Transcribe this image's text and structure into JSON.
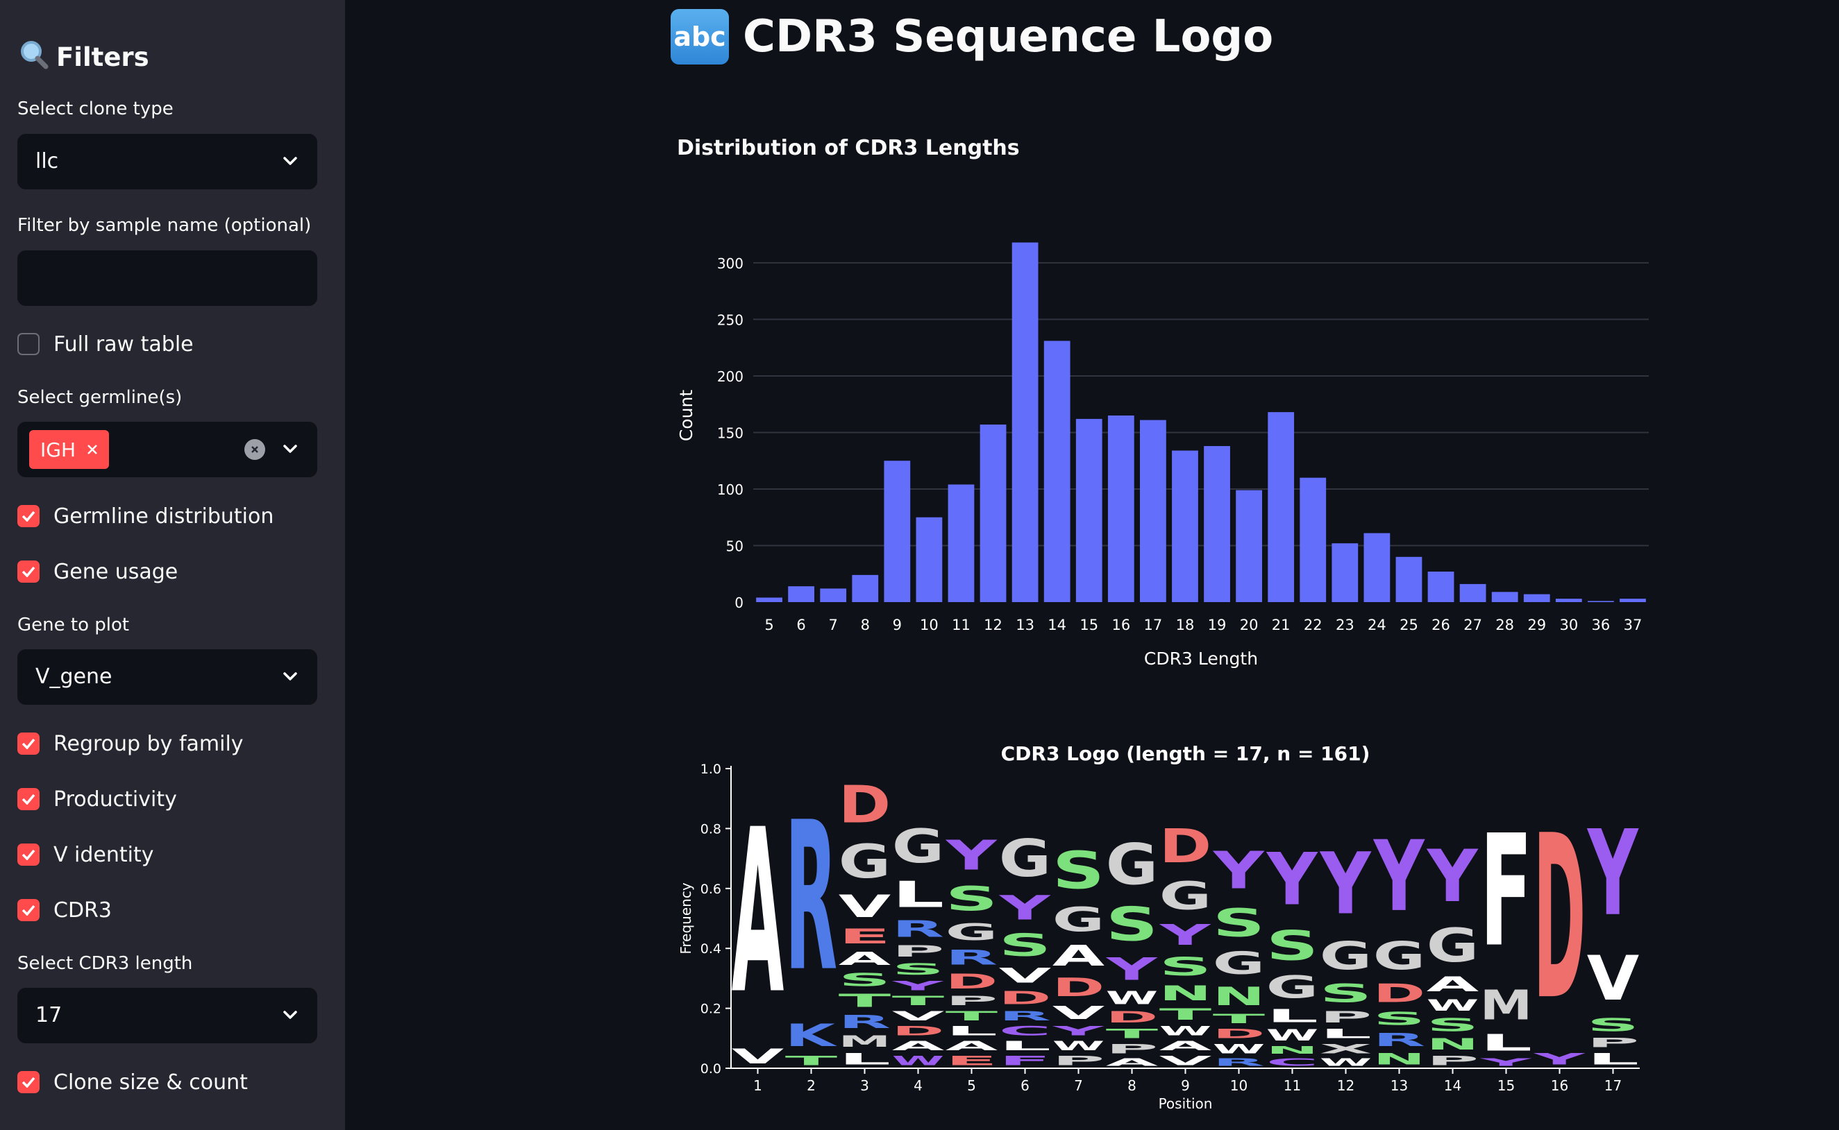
{
  "sidebar": {
    "title": "Filters",
    "title_icon": "magnifier-icon",
    "clone_type": {
      "label": "Select clone type",
      "value": "llc"
    },
    "sample_filter": {
      "label": "Filter by sample name (optional)",
      "value": "",
      "placeholder": ""
    },
    "full_raw_table": {
      "label": "Full raw table",
      "checked": false
    },
    "germline": {
      "label": "Select germline(s)",
      "selected": [
        "IGH"
      ]
    },
    "germline_distribution": {
      "label": "Germline distribution",
      "checked": true
    },
    "gene_usage": {
      "label": "Gene usage",
      "checked": true
    },
    "gene_to_plot": {
      "label": "Gene to plot",
      "value": "V_gene"
    },
    "regroup_by_family": {
      "label": "Regroup by family",
      "checked": true
    },
    "productivity": {
      "label": "Productivity",
      "checked": true
    },
    "v_identity": {
      "label": "V identity",
      "checked": true
    },
    "cdr3": {
      "label": "CDR3",
      "checked": true
    },
    "cdr3_length": {
      "label": "Select CDR3 length",
      "value": "17"
    },
    "clone_size_count": {
      "label": "Clone size & count",
      "checked": true
    }
  },
  "main": {
    "title": "CDR3 Sequence Logo",
    "title_icon": "abc-icon",
    "title_icon_text": "abc"
  },
  "chart_data": [
    {
      "type": "bar",
      "title": "Distribution of CDR3 Lengths",
      "xlabel": "CDR3 Length",
      "ylabel": "Count",
      "categories": [
        "5",
        "6",
        "7",
        "8",
        "9",
        "10",
        "11",
        "12",
        "13",
        "14",
        "15",
        "16",
        "17",
        "18",
        "19",
        "20",
        "21",
        "22",
        "23",
        "24",
        "25",
        "26",
        "27",
        "28",
        "29",
        "30",
        "36",
        "37"
      ],
      "values": [
        4,
        14,
        12,
        24,
        125,
        75,
        104,
        157,
        318,
        231,
        162,
        165,
        161,
        134,
        138,
        99,
        168,
        110,
        52,
        61,
        40,
        27,
        16,
        9,
        7,
        3,
        1,
        3
      ],
      "ylim": [
        0,
        330
      ],
      "yticks": [
        0,
        50,
        100,
        150,
        200,
        250,
        300
      ],
      "grid": true,
      "color": "#636efa"
    },
    {
      "type": "sequence-logo",
      "title": "CDR3 Logo (length = 17, n = 161)",
      "xlabel": "Position",
      "ylabel": "Frequency",
      "ylim": [
        0,
        1.0
      ],
      "yticks": [
        "0.0",
        "0.2",
        "0.4",
        "0.6",
        "0.8",
        "1.0"
      ],
      "positions": [
        "1",
        "2",
        "3",
        "4",
        "5",
        "6",
        "7",
        "8",
        "9",
        "10",
        "11",
        "12",
        "13",
        "14",
        "15",
        "16",
        "17"
      ],
      "colors": {
        "acidic": "#ef6f6c",
        "basic": "#4f7be8",
        "polar": "#7ce07c",
        "aromatic": "#9b5cf0",
        "hydrophobic": "#ffffff",
        "neutral": "#d0d0d0"
      },
      "stacks": [
        [
          [
            "V",
            0.08,
            "hydrophobic"
          ],
          [
            "A",
            0.88,
            "hydrophobic"
          ]
        ],
        [
          [
            "T",
            0.05,
            "polar"
          ],
          [
            "K",
            0.12,
            "basic"
          ],
          [
            "R",
            0.8,
            "basic"
          ]
        ],
        [
          [
            "L",
            0.06,
            "hydrophobic"
          ],
          [
            "M",
            0.06,
            "neutral"
          ],
          [
            "R",
            0.07,
            "basic"
          ],
          [
            "T",
            0.07,
            "polar"
          ],
          [
            "S",
            0.07,
            "polar"
          ],
          [
            "A",
            0.07,
            "hydrophobic"
          ],
          [
            "E",
            0.08,
            "acidic"
          ],
          [
            "V",
            0.12,
            "hydrophobic"
          ],
          [
            "G",
            0.18,
            "neutral"
          ],
          [
            "D",
            0.2,
            "acidic"
          ]
        ],
        [
          [
            "W",
            0.05,
            "aromatic"
          ],
          [
            "A",
            0.05,
            "hydrophobic"
          ],
          [
            "D",
            0.05,
            "acidic"
          ],
          [
            "V",
            0.05,
            "hydrophobic"
          ],
          [
            "T",
            0.05,
            "polar"
          ],
          [
            "Y",
            0.05,
            "aromatic"
          ],
          [
            "S",
            0.06,
            "polar"
          ],
          [
            "P",
            0.06,
            "neutral"
          ],
          [
            "R",
            0.09,
            "basic"
          ],
          [
            "L",
            0.14,
            "hydrophobic"
          ],
          [
            "G",
            0.18,
            "neutral"
          ]
        ],
        [
          [
            "E",
            0.05,
            "acidic"
          ],
          [
            "A",
            0.05,
            "hydrophobic"
          ],
          [
            "L",
            0.05,
            "hydrophobic"
          ],
          [
            "T",
            0.05,
            "polar"
          ],
          [
            "P",
            0.05,
            "neutral"
          ],
          [
            "D",
            0.08,
            "acidic"
          ],
          [
            "R",
            0.08,
            "basic"
          ],
          [
            "G",
            0.09,
            "neutral"
          ],
          [
            "S",
            0.13,
            "polar"
          ],
          [
            "Y",
            0.16,
            "aromatic"
          ]
        ],
        [
          [
            "F",
            0.05,
            "aromatic"
          ],
          [
            "L",
            0.05,
            "hydrophobic"
          ],
          [
            "C",
            0.05,
            "aromatic"
          ],
          [
            "R",
            0.05,
            "basic"
          ],
          [
            "D",
            0.07,
            "acidic"
          ],
          [
            "V",
            0.08,
            "hydrophobic"
          ],
          [
            "S",
            0.12,
            "polar"
          ],
          [
            "Y",
            0.13,
            "aromatic"
          ],
          [
            "G",
            0.2,
            "neutral"
          ]
        ],
        [
          [
            "P",
            0.05,
            "neutral"
          ],
          [
            "W",
            0.05,
            "hydrophobic"
          ],
          [
            "Y",
            0.05,
            "aromatic"
          ],
          [
            "V",
            0.07,
            "hydrophobic"
          ],
          [
            "D",
            0.1,
            "acidic"
          ],
          [
            "A",
            0.11,
            "hydrophobic"
          ],
          [
            "G",
            0.13,
            "neutral"
          ],
          [
            "S",
            0.2,
            "polar"
          ]
        ],
        [
          [
            "A",
            0.04,
            "hydrophobic"
          ],
          [
            "P",
            0.05,
            "neutral"
          ],
          [
            "T",
            0.05,
            "polar"
          ],
          [
            "D",
            0.06,
            "acidic"
          ],
          [
            "W",
            0.07,
            "hydrophobic"
          ],
          [
            "Y",
            0.12,
            "aromatic"
          ],
          [
            "S",
            0.18,
            "polar"
          ],
          [
            "G",
            0.22,
            "neutral"
          ]
        ],
        [
          [
            "V",
            0.05,
            "hydrophobic"
          ],
          [
            "A",
            0.05,
            "hydrophobic"
          ],
          [
            "W",
            0.05,
            "hydrophobic"
          ],
          [
            "T",
            0.06,
            "polar"
          ],
          [
            "N",
            0.08,
            "polar"
          ],
          [
            "S",
            0.1,
            "polar"
          ],
          [
            "Y",
            0.11,
            "aromatic"
          ],
          [
            "G",
            0.15,
            "neutral"
          ],
          [
            "D",
            0.18,
            "acidic"
          ]
        ],
        [
          [
            "R",
            0.04,
            "basic"
          ],
          [
            "W",
            0.05,
            "hydrophobic"
          ],
          [
            "D",
            0.05,
            "acidic"
          ],
          [
            "T",
            0.05,
            "polar"
          ],
          [
            "N",
            0.1,
            "polar"
          ],
          [
            "G",
            0.12,
            "neutral"
          ],
          [
            "S",
            0.15,
            "polar"
          ],
          [
            "Y",
            0.2,
            "aromatic"
          ]
        ],
        [
          [
            "C",
            0.04,
            "aromatic"
          ],
          [
            "N",
            0.04,
            "polar"
          ],
          [
            "W",
            0.06,
            "hydrophobic"
          ],
          [
            "L",
            0.07,
            "hydrophobic"
          ],
          [
            "G",
            0.12,
            "neutral"
          ],
          [
            "S",
            0.16,
            "polar"
          ],
          [
            "Y",
            0.28,
            "aromatic"
          ]
        ],
        [
          [
            "W",
            0.04,
            "hydrophobic"
          ],
          [
            "X",
            0.05,
            "neutral"
          ],
          [
            "L",
            0.05,
            "hydrophobic"
          ],
          [
            "P",
            0.06,
            "neutral"
          ],
          [
            "S",
            0.1,
            "polar"
          ],
          [
            "G",
            0.15,
            "neutral"
          ],
          [
            "Y",
            0.33,
            "aromatic"
          ]
        ],
        [
          [
            "N",
            0.06,
            "polar"
          ],
          [
            "R",
            0.07,
            "basic"
          ],
          [
            "S",
            0.07,
            "polar"
          ],
          [
            "D",
            0.1,
            "acidic"
          ],
          [
            "G",
            0.15,
            "neutral"
          ],
          [
            "Y",
            0.38,
            "aromatic"
          ]
        ],
        [
          [
            "P",
            0.05,
            "neutral"
          ],
          [
            "N",
            0.06,
            "polar"
          ],
          [
            "S",
            0.07,
            "polar"
          ],
          [
            "W",
            0.06,
            "hydrophobic"
          ],
          [
            "A",
            0.08,
            "hydrophobic"
          ],
          [
            "G",
            0.18,
            "neutral"
          ],
          [
            "Y",
            0.28,
            "aromatic"
          ]
        ],
        [
          [
            "Y",
            0.04,
            "aromatic"
          ],
          [
            "L",
            0.09,
            "hydrophobic"
          ],
          [
            "M",
            0.16,
            "neutral"
          ],
          [
            "F",
            0.6,
            "hydrophobic"
          ]
        ],
        [
          [
            "Y",
            0.06,
            "aromatic"
          ],
          [
            "D",
            0.88,
            "acidic"
          ]
        ],
        [
          [
            "L",
            0.06,
            "hydrophobic"
          ],
          [
            "P",
            0.05,
            "neutral"
          ],
          [
            "S",
            0.07,
            "polar"
          ],
          [
            "V",
            0.24,
            "hydrophobic"
          ],
          [
            "Y",
            0.46,
            "aromatic"
          ]
        ]
      ]
    }
  ]
}
